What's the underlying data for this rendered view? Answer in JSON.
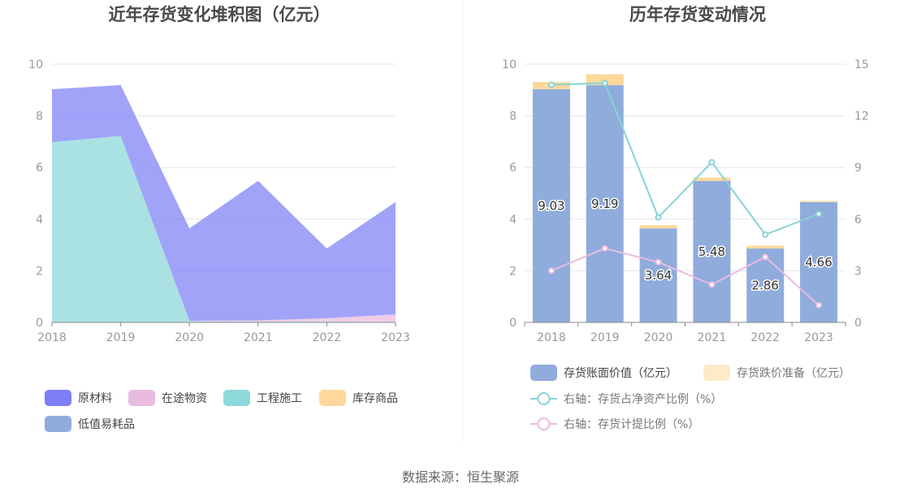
{
  "source_text": "数据来源：恒生聚源",
  "chart_data": [
    {
      "type": "area",
      "title": "近年存货变化堆积图（亿元）",
      "categories": [
        "2018",
        "2019",
        "2020",
        "2021",
        "2022",
        "2023"
      ],
      "ylim": [
        0,
        10
      ],
      "yticks": [
        0,
        2,
        4,
        6,
        8,
        10
      ],
      "grid": true,
      "legend_position": "bottom",
      "series": [
        {
          "name": "原材料",
          "color": "#7c7ff5",
          "values": [
            2.05,
            1.97,
            3.58,
            5.4,
            2.7,
            4.35
          ]
        },
        {
          "name": "在途物资",
          "color": "#e8bbdf",
          "values": [
            0,
            0,
            0.02,
            0.05,
            0.12,
            0.3
          ]
        },
        {
          "name": "工程施工",
          "color": "#8dd8da",
          "values": [
            6.98,
            7.22,
            0.04,
            0.03,
            0.04,
            0.01
          ]
        },
        {
          "name": "库存商品",
          "color": "#fdd89a",
          "values": [
            0,
            0,
            0,
            0,
            0,
            0
          ]
        },
        {
          "name": "低值易耗品",
          "color": "#8facdc",
          "values": [
            0,
            0,
            0,
            0,
            0,
            0
          ]
        }
      ]
    },
    {
      "type": "bar",
      "title": "历年存货变动情况",
      "categories": [
        "2018",
        "2019",
        "2020",
        "2021",
        "2022",
        "2023"
      ],
      "ylim": [
        0,
        10
      ],
      "yticks": [
        0,
        2,
        4,
        6,
        8,
        10
      ],
      "y2lim": [
        0,
        15
      ],
      "y2ticks": [
        0,
        3,
        6,
        9,
        12,
        15
      ],
      "grid": true,
      "legend_position": "bottom",
      "bar_series": [
        {
          "name": "存货账面价值（亿元）",
          "color": "#8facdc",
          "values": [
            9.03,
            9.19,
            3.64,
            5.48,
            2.86,
            4.66
          ],
          "labels": [
            "9.03",
            "9.19",
            "3.64",
            "5.48",
            "2.86",
            "4.66"
          ]
        },
        {
          "name": "存货跌价准备（亿元）",
          "color": "#fdd89a",
          "values": [
            0.28,
            0.42,
            0.12,
            0.13,
            0.11,
            0.04
          ]
        }
      ],
      "line_series": [
        {
          "name": "右轴：存货占净资产比例（%）",
          "color": "#87d3d6",
          "values": [
            13.8,
            13.9,
            6.1,
            9.3,
            5.1,
            6.3
          ]
        },
        {
          "name": "右轴：存货计提比例（%）",
          "color": "#e8bbdf",
          "values": [
            3.0,
            4.3,
            3.5,
            2.2,
            3.8,
            1.0
          ]
        }
      ]
    }
  ]
}
